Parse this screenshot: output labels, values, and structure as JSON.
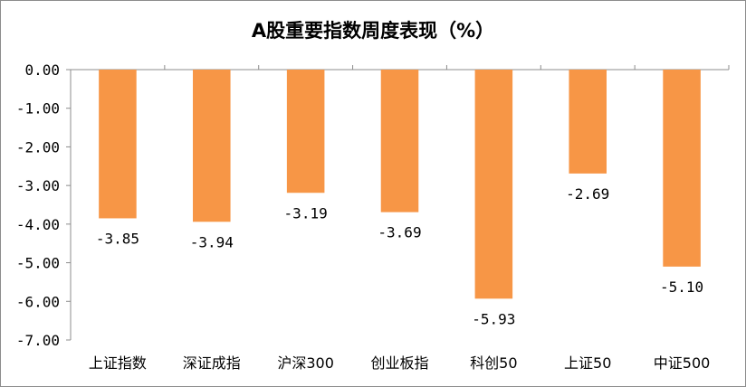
{
  "chart_data": {
    "type": "bar",
    "title": "A股重要指数周度表现（%）",
    "categories": [
      "上证指数",
      "深证成指",
      "沪深300",
      "创业板指",
      "科创50",
      "上证50",
      "中证500"
    ],
    "values": [
      -3.85,
      -3.94,
      -3.19,
      -3.69,
      -5.93,
      -2.69,
      -5.1
    ],
    "value_labels": [
      "-3.85",
      "-3.94",
      "-3.19",
      "-3.69",
      "-5.93",
      "-2.69",
      "-5.10"
    ],
    "yticks": [
      0,
      -1,
      -2,
      -3,
      -4,
      -5,
      -6,
      -7
    ],
    "ytick_labels": [
      "0.00",
      "-1.00",
      "-2.00",
      "-3.00",
      "-4.00",
      "-5.00",
      "-6.00",
      "-7.00"
    ],
    "ylim": [
      -7,
      0
    ],
    "grid": false,
    "legend": "none",
    "bar_color": "#F79646"
  }
}
